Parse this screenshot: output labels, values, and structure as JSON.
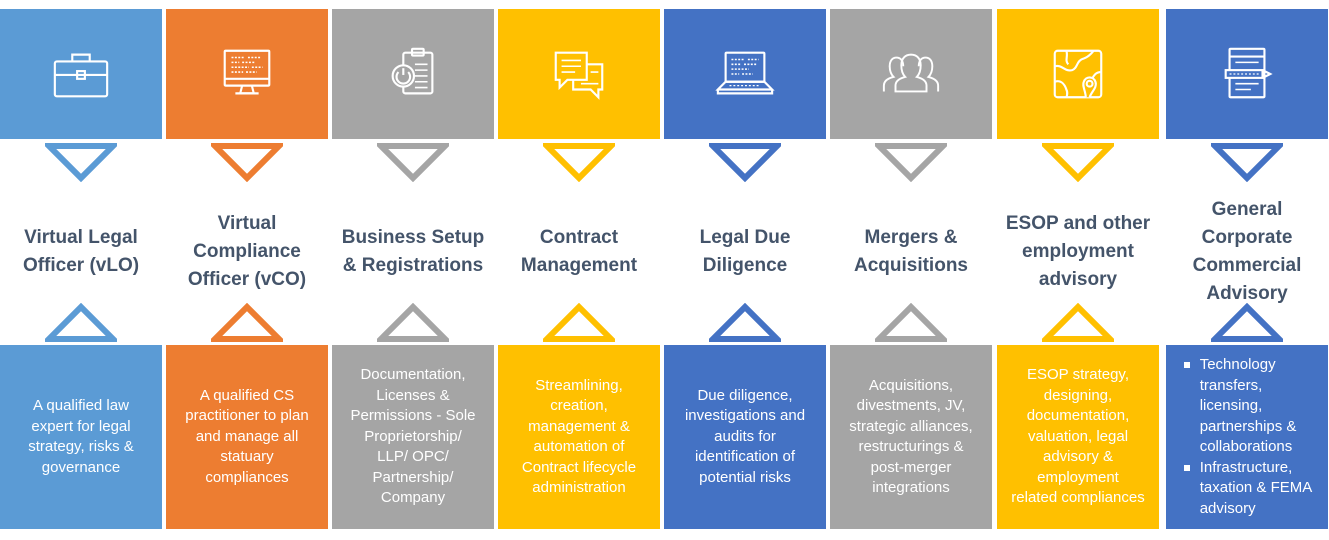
{
  "columns": [
    {
      "color": "#5b9bd5",
      "icon": "briefcase-icon",
      "title_lines": [
        "Virtual Legal",
        "Officer (vLO)"
      ],
      "desc_lines": [
        "A qualified law",
        "expert for legal",
        "strategy, risks &",
        "governance"
      ]
    },
    {
      "color": "#ed7d31",
      "icon": "monitor-icon",
      "title_lines": [
        "Virtual",
        "Compliance",
        "Officer (vCO)"
      ],
      "desc_lines": [
        "A qualified CS",
        "practitioner to plan",
        "and manage all",
        "statuary",
        "compliances"
      ]
    },
    {
      "color": "#a5a5a5",
      "icon": "clipboard-power-icon",
      "title_lines": [
        "Business Setup",
        "& Registrations"
      ],
      "desc_lines": [
        "Documentation,",
        "Licenses &",
        "Permissions - Sole",
        "Proprietorship/",
        "LLP/ OPC/",
        "Partnership/",
        "Company"
      ]
    },
    {
      "color": "#ffc000",
      "icon": "chat-documents-icon",
      "title_lines": [
        "Contract",
        "Management"
      ],
      "desc_lines": [
        "Streamlining,",
        "creation,",
        "management &",
        "automation of",
        "Contract lifecycle",
        "administration"
      ]
    },
    {
      "color": "#4472c4",
      "icon": "laptop-icon",
      "title_lines": [
        "Legal Due",
        "Diligence"
      ],
      "desc_lines": [
        "Due diligence,",
        "investigations and",
        "audits for",
        "identification of",
        "potential risks"
      ]
    },
    {
      "color": "#a5a5a5",
      "icon": "people-group-icon",
      "title_lines": [
        "Mergers &",
        "Acquisitions"
      ],
      "desc_lines": [
        "Acquisitions,",
        "divestments, JV,",
        "strategic alliances,",
        "restructurings &",
        "post-merger",
        "integrations"
      ]
    },
    {
      "color": "#ffc000",
      "icon": "map-icon",
      "title_lines": [
        "ESOP and other",
        "employment",
        "advisory"
      ],
      "desc_lines": [
        "ESOP strategy,",
        "designing,",
        "documentation,",
        "valuation, legal",
        "advisory &",
        "employment",
        "related compliances"
      ]
    },
    {
      "color": "#4472c4",
      "icon": "document-pen-icon",
      "title_lines": [
        "General",
        "Corporate",
        "Commercial",
        "Advisory"
      ],
      "bullets": [
        {
          "lines": [
            "Technology",
            "transfers,",
            "licensing,",
            "partnerships &",
            "collaborations"
          ]
        },
        {
          "lines": [
            "Infrastructure,",
            "taxation & FEMA",
            "advisory"
          ]
        }
      ]
    }
  ]
}
